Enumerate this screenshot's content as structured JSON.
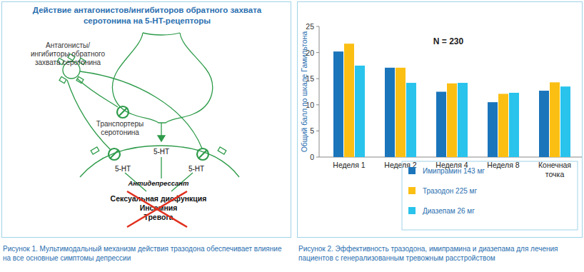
{
  "chart_data": {
    "type": "bar",
    "title": "N = 230",
    "y_label": "Общий балл по шкале Гамильтона",
    "categories": [
      "Неделя 1",
      "Неделя 2",
      "Неделя 4",
      "Неделя 8",
      "Конечная точка"
    ],
    "series": [
      {
        "name": "Имипрамин 143 мг",
        "color": "#1b75bb",
        "values": [
          20.2,
          17.1,
          12.5,
          10.5,
          12.7
        ]
      },
      {
        "name": "Тразодон 225 мг",
        "color": "#fbbf14",
        "values": [
          21.7,
          17.1,
          14.1,
          12.1,
          14.3
        ]
      },
      {
        "name": "Диазепам 26 мг",
        "color": "#29c3ec",
        "values": [
          17.5,
          14.2,
          14.2,
          12.3,
          13.5
        ]
      }
    ],
    "ylim": [
      0,
      25
    ],
    "yticks": [
      0,
      5,
      10,
      15,
      20,
      25
    ],
    "grid": false,
    "legend": "bottom"
  },
  "diagram": {
    "title": "Действие антагонистов/ингибиторов обратного захвата серотонина на 5-HT-рецепторы",
    "drug_label": "Антагонисты/ингибиторы обратного захвата серотонина",
    "transporter_label": "Транспортеры серотонина",
    "serotonin": [
      "5-HT",
      "5-HT",
      "5-HT"
    ],
    "effect_label": "Антидепрессант",
    "blocked_effects": [
      "Сексуальная дисфункция",
      "Инсомния",
      "Тревога"
    ]
  },
  "captions": [
    "Рисунок 1. Мультимодальный механизм действия тразодона обеспечивает влияние на все основные симптомы депрессии",
    "Рисунок 2. Эффективность тразодона, имипрамина и диазепама для лечения пациентов с генерализованным тревожным расстройством"
  ]
}
